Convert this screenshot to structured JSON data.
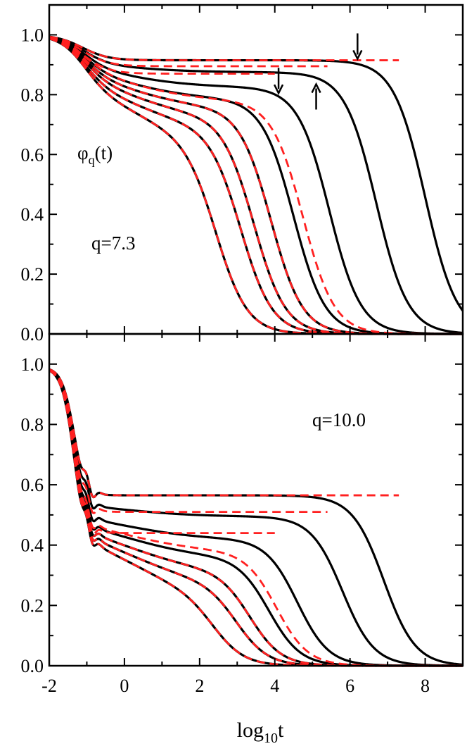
{
  "chart_data": [
    {
      "type": "line",
      "panel": "top",
      "xlim": [
        -2,
        9
      ],
      "ylim": [
        0,
        1.1
      ],
      "x_ticks": [
        "-2",
        "0",
        "2",
        "4",
        "6",
        "8"
      ],
      "y_ticks": [
        "0.0",
        "0.2",
        "0.4",
        "0.6",
        "0.8",
        "1.0"
      ],
      "annotations": [
        {
          "kind": "label",
          "text": "φ",
          "subscript": "q",
          "suffix": "(t)"
        },
        {
          "kind": "label",
          "text": "q=7.3"
        },
        {
          "kind": "arrow",
          "direction": "down",
          "x": 6.2,
          "y_tip": 0.92
        },
        {
          "kind": "arrow",
          "direction": "down",
          "x": 4.1,
          "y_tip": 0.805
        },
        {
          "kind": "arrow",
          "direction": "up",
          "x": 5.1,
          "y_tip": 0.835
        }
      ],
      "colors": {
        "solid": "#000000",
        "dashed": "#ff2020"
      },
      "series": [
        {
          "style": "solid",
          "start": 1.0,
          "decay_x": -1.12,
          "decay_w": 0.35,
          "plateau": 0.915,
          "creep": 0.0,
          "drop_x": 8.0,
          "drop_w": 0.42
        },
        {
          "style": "solid",
          "start": 1.0,
          "decay_x": -1.12,
          "decay_w": 0.35,
          "plateau": 0.905,
          "creep": 0.03,
          "drop_x": 6.7,
          "drop_w": 0.42
        },
        {
          "style": "solid",
          "start": 1.0,
          "decay_x": -1.12,
          "decay_w": 0.35,
          "plateau": 0.895,
          "creep": 0.07,
          "drop_x": 5.45,
          "drop_w": 0.42
        },
        {
          "style": "solid",
          "start": 1.0,
          "decay_x": -1.12,
          "decay_w": 0.35,
          "plateau": 0.885,
          "creep": 0.1,
          "drop_x": 4.5,
          "drop_w": 0.42
        },
        {
          "style": "solid",
          "start": 1.0,
          "decay_x": -1.12,
          "decay_w": 0.35,
          "plateau": 0.875,
          "creep": 0.12,
          "drop_x": 3.9,
          "drop_w": 0.42
        },
        {
          "style": "solid",
          "start": 1.0,
          "decay_x": -1.12,
          "decay_w": 0.35,
          "plateau": 0.865,
          "creep": 0.14,
          "drop_x": 3.45,
          "drop_w": 0.42
        },
        {
          "style": "solid",
          "start": 1.0,
          "decay_x": -1.12,
          "decay_w": 0.35,
          "plateau": 0.85,
          "creep": 0.16,
          "drop_x": 3.1,
          "drop_w": 0.42
        },
        {
          "style": "solid",
          "start": 1.0,
          "decay_x": -1.12,
          "decay_w": 0.35,
          "plateau": 0.84,
          "creep": 0.19,
          "drop_x": 2.45,
          "drop_w": 0.42
        },
        {
          "style": "dashed",
          "start": 1.0,
          "decay_x": -1.12,
          "decay_w": 0.35,
          "plateau": 0.915,
          "creep": 0.0,
          "drop_x": 30,
          "drop_w": 0.42,
          "x_end": 7.3
        },
        {
          "style": "dashed",
          "start": 1.0,
          "decay_x": -1.12,
          "decay_w": 0.35,
          "plateau": 0.895,
          "creep": 0.0,
          "drop_x": 30,
          "drop_w": 0.42,
          "x_end": 5.4
        },
        {
          "style": "dashed",
          "start": 1.0,
          "decay_x": -1.12,
          "decay_w": 0.35,
          "plateau": 0.87,
          "creep": 0.0,
          "drop_x": 30,
          "drop_w": 0.42,
          "x_end": 4.0
        },
        {
          "style": "dashed",
          "start": 1.0,
          "decay_x": -1.12,
          "decay_w": 0.35,
          "plateau": 0.89,
          "creep": 0.11,
          "drop_x": 4.75,
          "drop_w": 0.42
        },
        {
          "style": "dashed",
          "start": 1.0,
          "decay_x": -1.12,
          "decay_w": 0.35,
          "plateau": 0.875,
          "creep": 0.12,
          "drop_x": 3.9,
          "drop_w": 0.42
        },
        {
          "style": "dashed",
          "start": 1.0,
          "decay_x": -1.12,
          "decay_w": 0.35,
          "plateau": 0.865,
          "creep": 0.14,
          "drop_x": 3.45,
          "drop_w": 0.42
        },
        {
          "style": "dashed",
          "start": 1.0,
          "decay_x": -1.12,
          "decay_w": 0.35,
          "plateau": 0.85,
          "creep": 0.16,
          "drop_x": 3.1,
          "drop_w": 0.42
        },
        {
          "style": "dashed",
          "start": 1.0,
          "decay_x": -1.12,
          "decay_w": 0.35,
          "plateau": 0.84,
          "creep": 0.19,
          "drop_x": 2.45,
          "drop_w": 0.42
        }
      ]
    },
    {
      "type": "line",
      "panel": "bottom",
      "xlim": [
        -2,
        9
      ],
      "ylim": [
        0,
        1.1
      ],
      "x_ticks": [
        "-2",
        "0",
        "2",
        "4",
        "6",
        "8"
      ],
      "y_ticks": [
        "0.0",
        "0.2",
        "0.4",
        "0.6",
        "0.8",
        "1.0"
      ],
      "xlabel": {
        "text": "log",
        "subscript": "10",
        "suffix": "t"
      },
      "annotations": [
        {
          "kind": "label",
          "text": "q=10.0"
        }
      ],
      "colors": {
        "solid": "#000000",
        "dashed": "#ff2020"
      },
      "series": [
        {
          "style": "solid",
          "start": 0.99,
          "decay_x": -1.35,
          "decay_w": 0.16,
          "plateau": 0.565,
          "creep": 0.0,
          "drop_x": 6.9,
          "drop_w": 0.42,
          "wiggle": 0.03
        },
        {
          "style": "solid",
          "start": 0.99,
          "decay_x": -1.35,
          "decay_w": 0.16,
          "plateau": 0.535,
          "creep": 0.04,
          "drop_x": 5.8,
          "drop_w": 0.42,
          "wiggle": 0.03
        },
        {
          "style": "solid",
          "start": 0.99,
          "decay_x": -1.35,
          "decay_w": 0.16,
          "plateau": 0.5,
          "creep": 0.08,
          "drop_x": 4.6,
          "drop_w": 0.42,
          "wiggle": 0.03
        },
        {
          "style": "solid",
          "start": 0.99,
          "decay_x": -1.35,
          "decay_w": 0.16,
          "plateau": 0.48,
          "creep": 0.12,
          "drop_x": 3.85,
          "drop_w": 0.42,
          "wiggle": 0.03
        },
        {
          "style": "solid",
          "start": 0.99,
          "decay_x": -1.35,
          "decay_w": 0.16,
          "plateau": 0.465,
          "creep": 0.15,
          "drop_x": 3.35,
          "drop_w": 0.42,
          "wiggle": 0.03
        },
        {
          "style": "solid",
          "start": 0.99,
          "decay_x": -1.35,
          "decay_w": 0.16,
          "plateau": 0.455,
          "creep": 0.18,
          "drop_x": 3.0,
          "drop_w": 0.42,
          "wiggle": 0.03
        },
        {
          "style": "solid",
          "start": 0.99,
          "decay_x": -1.35,
          "decay_w": 0.16,
          "plateau": 0.445,
          "creep": 0.21,
          "drop_x": 2.4,
          "drop_w": 0.42,
          "wiggle": 0.03
        },
        {
          "style": "dashed",
          "start": 0.99,
          "decay_x": -1.35,
          "decay_w": 0.16,
          "plateau": 0.565,
          "creep": 0.0,
          "drop_x": 30,
          "drop_w": 0.42,
          "wiggle": 0.03,
          "x_end": 7.3
        },
        {
          "style": "dashed",
          "start": 0.99,
          "decay_x": -1.35,
          "decay_w": 0.16,
          "plateau": 0.51,
          "creep": 0.0,
          "drop_x": 30,
          "drop_w": 0.42,
          "wiggle": 0.03,
          "x_end": 5.4
        },
        {
          "style": "dashed",
          "start": 0.99,
          "decay_x": -1.35,
          "decay_w": 0.16,
          "plateau": 0.44,
          "creep": 0.0,
          "drop_x": 30,
          "drop_w": 0.42,
          "wiggle": 0.03,
          "x_end": 4.0
        },
        {
          "style": "dashed",
          "start": 0.99,
          "decay_x": -1.35,
          "decay_w": 0.16,
          "plateau": 0.48,
          "creep": 0.1,
          "drop_x": 4.05,
          "drop_w": 0.42,
          "wiggle": 0.03
        },
        {
          "style": "dashed",
          "start": 0.99,
          "decay_x": -1.35,
          "decay_w": 0.16,
          "plateau": 0.465,
          "creep": 0.15,
          "drop_x": 3.35,
          "drop_w": 0.42,
          "wiggle": 0.03
        },
        {
          "style": "dashed",
          "start": 0.99,
          "decay_x": -1.35,
          "decay_w": 0.16,
          "plateau": 0.455,
          "creep": 0.18,
          "drop_x": 3.0,
          "drop_w": 0.42,
          "wiggle": 0.03
        },
        {
          "style": "dashed",
          "start": 0.99,
          "decay_x": -1.35,
          "decay_w": 0.16,
          "plateau": 0.445,
          "creep": 0.21,
          "drop_x": 2.4,
          "drop_w": 0.42,
          "wiggle": 0.03
        }
      ]
    }
  ]
}
